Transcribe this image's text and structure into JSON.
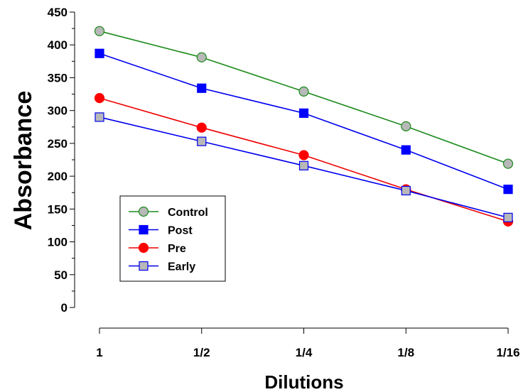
{
  "chart_data": {
    "type": "line",
    "xlabel": "Dilutions",
    "ylabel": "Absorbance",
    "categories": [
      "1",
      "1/2",
      "1/4",
      "1/8",
      "1/16"
    ],
    "ylim": [
      0,
      450
    ],
    "yticks": [
      0,
      50,
      100,
      150,
      200,
      250,
      300,
      350,
      400,
      450
    ],
    "grid": false,
    "legend_position": "lower-left",
    "series": [
      {
        "name": "Control",
        "values": [
          421,
          381,
          329,
          276,
          219
        ],
        "line_color": "#1a8a1a",
        "marker": "circle",
        "marker_fill": "#b8b8b8",
        "marker_stroke": "#1a8a1a"
      },
      {
        "name": "Post",
        "values": [
          387,
          334,
          296,
          240,
          180
        ],
        "line_color": "#0000ee",
        "marker": "square",
        "marker_fill": "#0000ff",
        "marker_stroke": "#0000ff"
      },
      {
        "name": "Pre",
        "values": [
          319,
          274,
          232,
          180,
          131
        ],
        "line_color": "#ee0000",
        "marker": "circle",
        "marker_fill": "#ff0000",
        "marker_stroke": "#ff0000"
      },
      {
        "name": "Early",
        "values": [
          290,
          253,
          216,
          178,
          137
        ],
        "line_color": "#0000ee",
        "marker": "square",
        "marker_fill": "#b8b8b8",
        "marker_stroke": "#0000ee"
      }
    ]
  }
}
